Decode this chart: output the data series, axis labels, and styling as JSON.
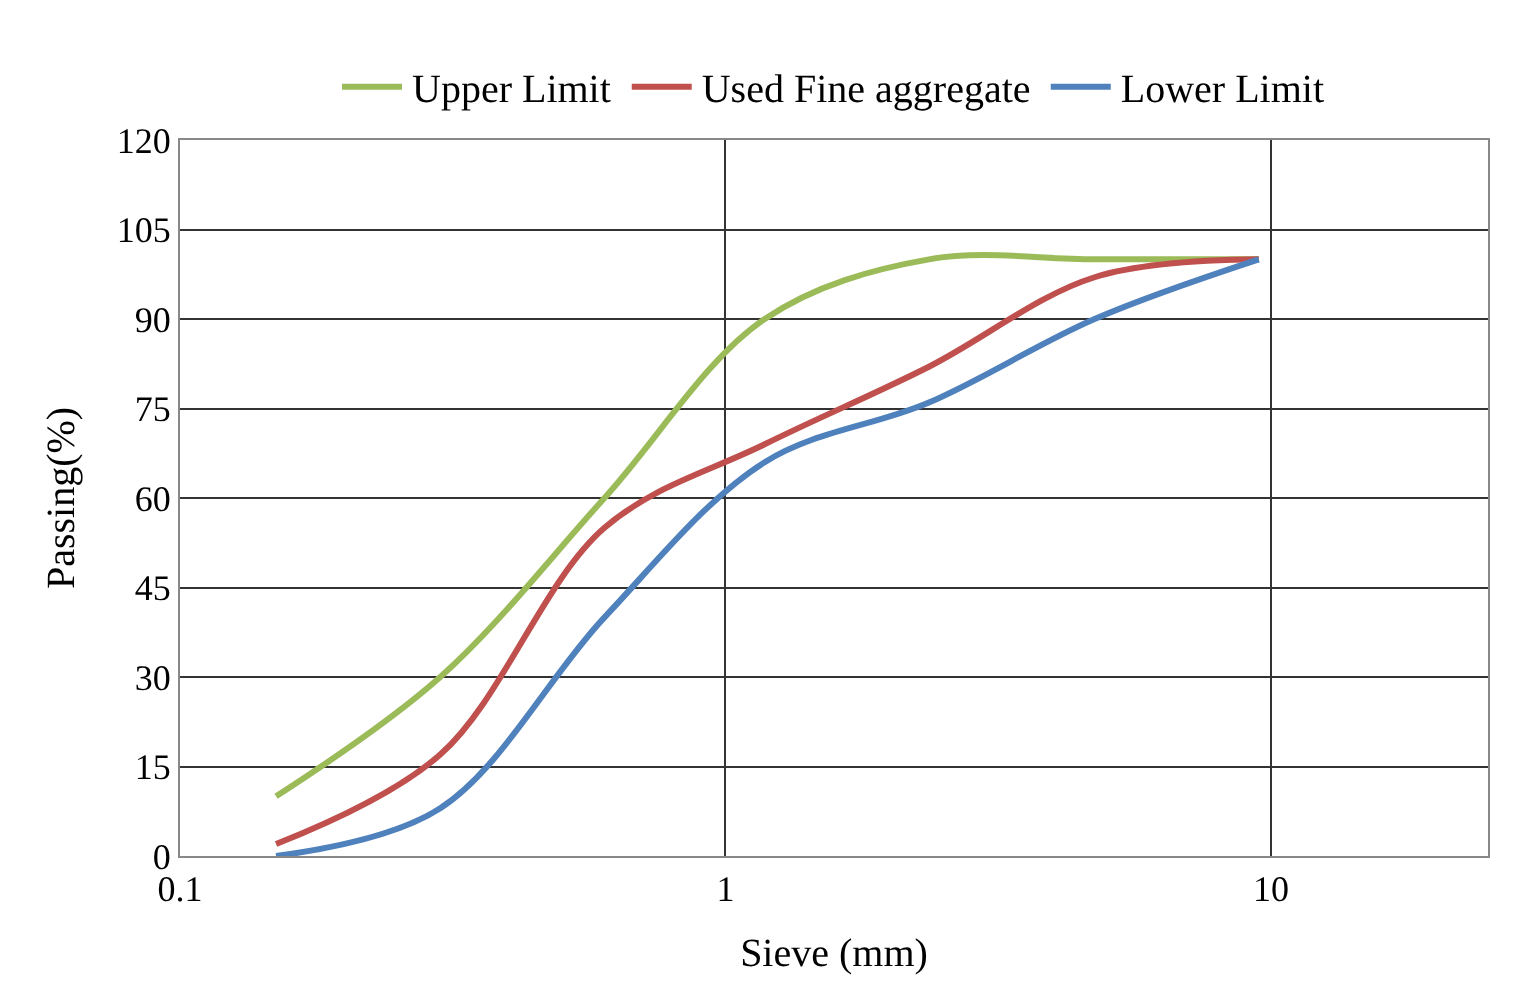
{
  "chart_data": {
    "type": "line",
    "xlabel": "Sieve (mm)",
    "ylabel": "Passing(%)",
    "x": [
      0.15,
      0.3,
      0.6,
      1.18,
      2.36,
      4.75,
      9.5
    ],
    "series": [
      {
        "name": "Upper Limit",
        "color": "#9bbb59",
        "values": [
          10,
          30,
          60,
          90,
          100,
          100,
          100
        ]
      },
      {
        "name": "Used Fine aggregate",
        "color": "#c0504d",
        "values": [
          2,
          17,
          55,
          69,
          82,
          97,
          100
        ]
      },
      {
        "name": "Lower Limit",
        "color": "#4f81bd",
        "values": [
          0,
          8,
          40,
          66,
          76,
          90,
          100
        ]
      }
    ],
    "log": "x",
    "xlim": [
      0.1,
      25
    ],
    "xticks": [
      0.1,
      1,
      10
    ],
    "ylim": [
      0,
      120
    ],
    "yticks": [
      0,
      15,
      30,
      45,
      60,
      75,
      90,
      105,
      120
    ],
    "grid": true,
    "legend": "top",
    "marker": "none",
    "line_style": "solid"
  }
}
